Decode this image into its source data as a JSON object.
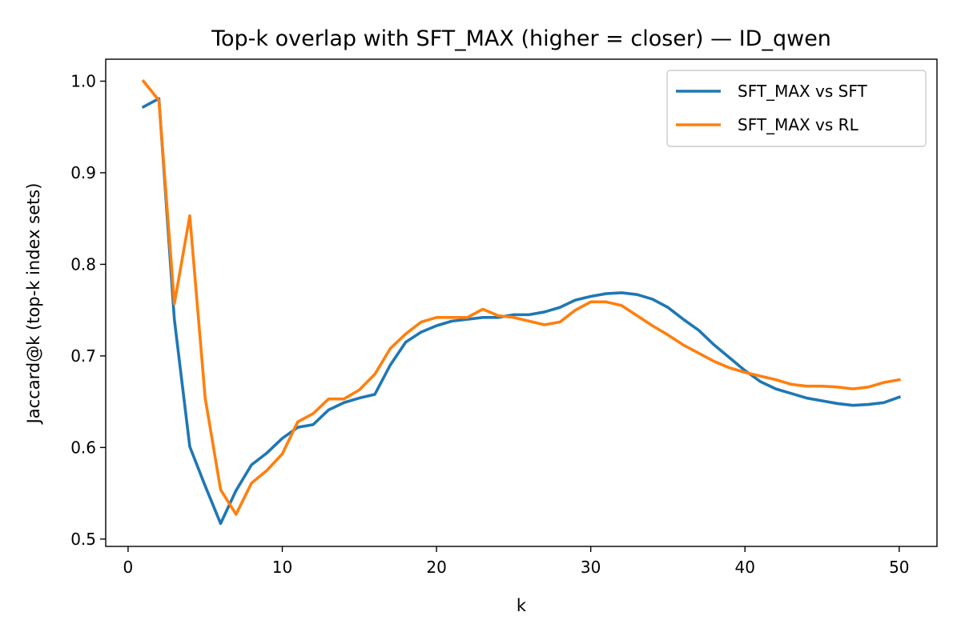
{
  "chart_data": {
    "type": "line",
    "title": "Top-k overlap with SFT_MAX (higher = closer) — ID_qwen",
    "xlabel": "k",
    "ylabel": "Jaccard@k (top-k index sets)",
    "xlim": [
      -1.45,
      52.45
    ],
    "ylim": [
      0.492,
      1.024
    ],
    "xticks": [
      0,
      10,
      20,
      30,
      40,
      50
    ],
    "yticks": [
      0.5,
      0.6,
      0.7,
      0.8,
      0.9,
      1.0
    ],
    "ytick_labels": [
      "0.5",
      "0.6",
      "0.7",
      "0.8",
      "0.9",
      "1.0"
    ],
    "grid": false,
    "legend_position": "upper right",
    "x": [
      1,
      2,
      3,
      4,
      5,
      6,
      7,
      8,
      9,
      10,
      11,
      12,
      13,
      14,
      15,
      16,
      17,
      18,
      19,
      20,
      21,
      22,
      23,
      24,
      25,
      26,
      27,
      28,
      29,
      30,
      31,
      32,
      33,
      34,
      35,
      36,
      37,
      38,
      39,
      40,
      41,
      42,
      43,
      44,
      45,
      46,
      47,
      48,
      49,
      50
    ],
    "series": [
      {
        "name": "SFT_MAX vs SFT",
        "color": "#1f77b4",
        "values": [
          0.972,
          0.981,
          0.74,
          0.601,
          0.558,
          0.517,
          0.553,
          0.581,
          0.594,
          0.61,
          0.622,
          0.625,
          0.641,
          0.649,
          0.654,
          0.658,
          0.69,
          0.715,
          0.726,
          0.733,
          0.738,
          0.74,
          0.742,
          0.742,
          0.745,
          0.745,
          0.748,
          0.753,
          0.761,
          0.765,
          0.768,
          0.769,
          0.767,
          0.762,
          0.753,
          0.74,
          0.728,
          0.712,
          0.698,
          0.684,
          0.672,
          0.664,
          0.659,
          0.654,
          0.651,
          0.648,
          0.646,
          0.647,
          0.649,
          0.655
        ]
      },
      {
        "name": "SFT_MAX vs RL",
        "color": "#ff7f0e",
        "values": [
          1.0,
          0.979,
          0.757,
          0.853,
          0.654,
          0.554,
          0.527,
          0.561,
          0.575,
          0.593,
          0.628,
          0.637,
          0.653,
          0.653,
          0.663,
          0.68,
          0.708,
          0.724,
          0.737,
          0.742,
          0.742,
          0.742,
          0.751,
          0.744,
          0.742,
          0.738,
          0.734,
          0.737,
          0.75,
          0.759,
          0.759,
          0.755,
          0.744,
          0.733,
          0.723,
          0.712,
          0.703,
          0.694,
          0.687,
          0.682,
          0.678,
          0.674,
          0.669,
          0.667,
          0.667,
          0.666,
          0.664,
          0.666,
          0.671,
          0.674
        ]
      }
    ]
  }
}
